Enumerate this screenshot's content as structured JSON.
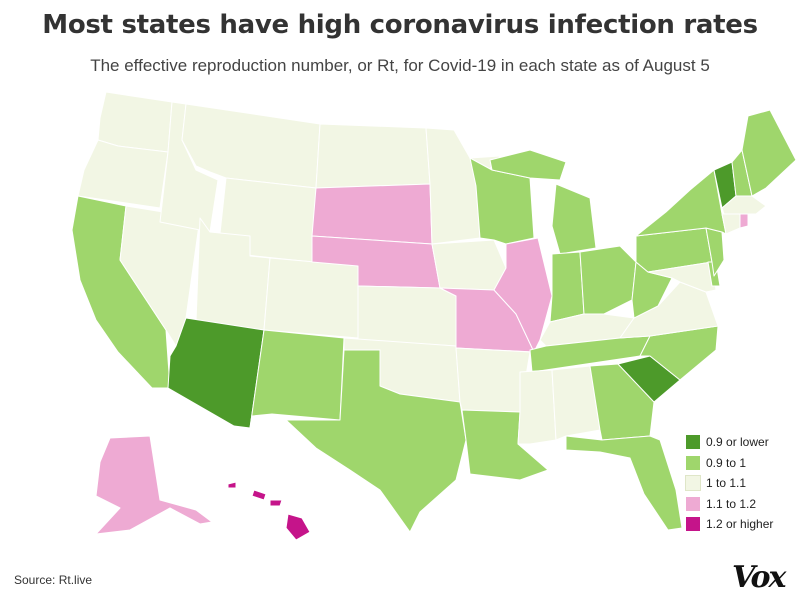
{
  "title": "Most states have high coronavirus infection rates",
  "subtitle": "The effective reproduction number, or Rt, for Covid-19 in each state as of August 5",
  "source": "Source: Rt.live",
  "logo": "Vox",
  "colors": {
    "border": "#ffffff",
    "c1": "#4d9a2a",
    "c2": "#9fd66c",
    "c3": "#f2f6e4",
    "c4": "#eeaad3",
    "c5": "#c5148a"
  },
  "legend": [
    {
      "key": "c1",
      "label": "0.9 or lower",
      "color": "#4d9a2a"
    },
    {
      "key": "c2",
      "label": "0.9 to 1",
      "color": "#9fd66c"
    },
    {
      "key": "c3",
      "label": "1 to 1.1",
      "color": "#f2f6e4"
    },
    {
      "key": "c4",
      "label": "1.1 to 1.2",
      "color": "#eeaad3"
    },
    {
      "key": "c5",
      "label": "1.2 or higher",
      "color": "#c5148a"
    }
  ],
  "states": {
    "WA": "c3",
    "OR": "c3",
    "CA": "c2",
    "NV": "c3",
    "ID": "c3",
    "MT": "c3",
    "WY": "c3",
    "UT": "c3",
    "AZ": "c1",
    "CO": "c3",
    "NM": "c2",
    "ND": "c3",
    "SD": "c4",
    "NE": "c4",
    "KS": "c3",
    "OK": "c3",
    "TX": "c2",
    "MN": "c3",
    "IA": "c3",
    "MO": "c4",
    "AR": "c3",
    "LA": "c2",
    "WI": "c2",
    "IL": "c4",
    "MI": "c2",
    "IN": "c2",
    "OH": "c2",
    "KY": "c3",
    "TN": "c2",
    "MS": "c3",
    "AL": "c3",
    "GA": "c2",
    "FL": "c2",
    "SC": "c1",
    "NC": "c2",
    "VA": "c3",
    "WV": "c2",
    "PA": "c2",
    "NY": "c2",
    "NJ": "c2",
    "DE": "c2",
    "MD": "c3",
    "VT": "c1",
    "NH": "c2",
    "ME": "c2",
    "MA": "c3",
    "CT": "c3",
    "RI": "c4",
    "AK": "c4",
    "HI": "c5"
  }
}
